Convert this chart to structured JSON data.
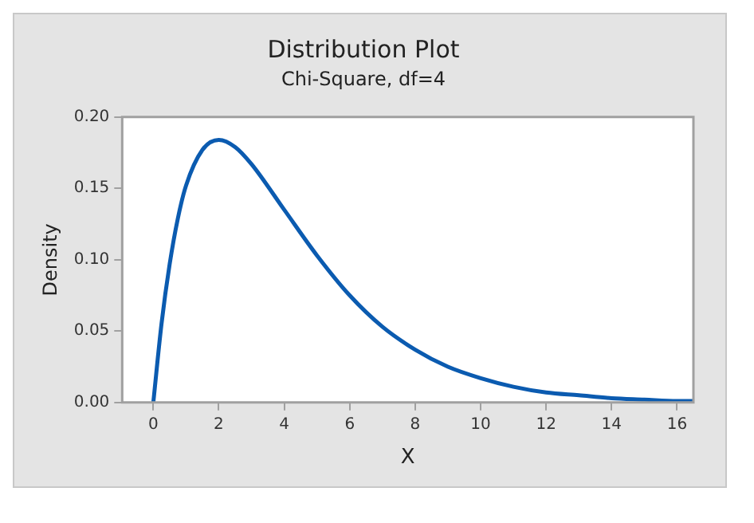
{
  "chart_data": {
    "type": "line",
    "title": "Distribution Plot",
    "subtitle": "Chi-Square, df=4",
    "xlabel": "X",
    "ylabel": "Density",
    "x": [
      0,
      0.25,
      0.5,
      0.75,
      1,
      1.5,
      2,
      2.5,
      3,
      4,
      5,
      6,
      7,
      8,
      9,
      10,
      11,
      12,
      13,
      14,
      15,
      16,
      16.5
    ],
    "series": [
      {
        "color": "#0b5bb0",
        "values": [
          0,
          0.055,
          0.097,
          0.129,
          0.152,
          0.177,
          0.184,
          0.179,
          0.167,
          0.135,
          0.103,
          0.075,
          0.053,
          0.037,
          0.025,
          0.017,
          0.011,
          0.007,
          0.005,
          0.003,
          0.002,
          0.001,
          0.001
        ]
      }
    ],
    "xlim": [
      -0.95,
      16.5
    ],
    "xticks": [
      0,
      2,
      4,
      6,
      8,
      10,
      12,
      14,
      16
    ],
    "ylim": [
      0,
      0.2
    ],
    "yticks": [
      {
        "value": 0,
        "label": "0.00"
      },
      {
        "value": 0.05,
        "label": "0.05"
      },
      {
        "value": 0.1,
        "label": "0.10"
      },
      {
        "value": 0.15,
        "label": "0.15"
      },
      {
        "value": 0.2,
        "label": "0.20"
      }
    ],
    "grid": false,
    "legend": false,
    "marker": "none",
    "line_style": "solid"
  }
}
